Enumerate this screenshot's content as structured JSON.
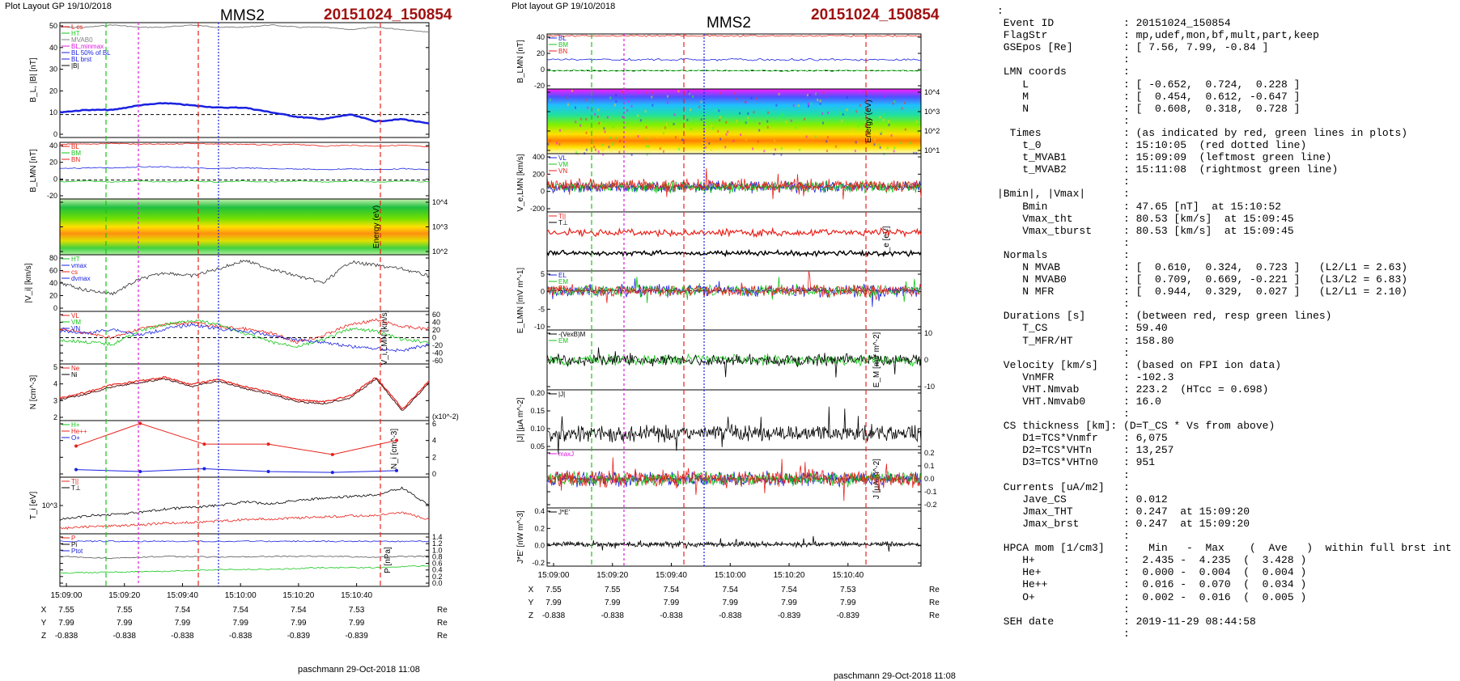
{
  "left_page": {
    "plot_layout": "Plot Layout GP 19/10/2018",
    "spacecraft": "MMS2",
    "event_label": "20151024_150854",
    "footer": "paschmann 29-Oct-2018 11:08",
    "time_ticks": [
      "15:09:00",
      "15:09:20",
      "15:09:40",
      "15:10:00",
      "15:10:20",
      "15:10:40"
    ],
    "pos_rows": [
      {
        "axis": "X",
        "values": [
          "7.55",
          "7.55",
          "7.54",
          "7.54",
          "7.54",
          "7.53"
        ],
        "unit": "Re"
      },
      {
        "axis": "Y",
        "values": [
          "7.99",
          "7.99",
          "7.99",
          "7.99",
          "7.99",
          "7.99"
        ],
        "unit": "Re"
      },
      {
        "axis": "Z",
        "values": [
          "-0.838",
          "-0.838",
          "-0.838",
          "-0.838",
          "-0.839",
          "-0.839"
        ],
        "unit": "Re"
      }
    ]
  },
  "right_page": {
    "plot_layout": "Plot layout GP 19/10/2018",
    "spacecraft": "MMS2",
    "event_label": "20151024_150854",
    "footer": "paschmann 29-Oct-2018 11:08",
    "time_ticks": [
      "15:09:00",
      "15:09:20",
      "15:09:40",
      "15:10:00",
      "15:10:20",
      "15:10:40"
    ],
    "pos_rows": [
      {
        "axis": "X",
        "values": [
          "7.55",
          "7.55",
          "7.54",
          "7.54",
          "7.54",
          "7.53"
        ],
        "unit": "Re"
      },
      {
        "axis": "Y",
        "values": [
          "7.99",
          "7.99",
          "7.99",
          "7.99",
          "7.99",
          "7.99"
        ],
        "unit": "Re"
      },
      {
        "axis": "Z",
        "values": [
          "-0.838",
          "-0.838",
          "-0.838",
          "-0.838",
          "-0.839",
          "-0.839"
        ],
        "unit": "Re"
      }
    ]
  },
  "colors": {
    "red": "#e8221b",
    "green": "#16c61b",
    "blue": "#1a22e0",
    "magenta": "#e018e0",
    "black": "#000000",
    "gray": "#808080",
    "title_red": "#a01010"
  },
  "chart_data": [
    {
      "type": "line",
      "panel": "L1",
      "ylabel": "B_L, |B| [nT]",
      "ylim": [
        0,
        50
      ],
      "yticks": [
        "50",
        "40",
        "30",
        "20",
        "10",
        "0"
      ],
      "legend": [
        "L cs",
        "HT",
        "MVAB0",
        "BL,minmax",
        "BL 50% of BL",
        "BL brst",
        "|B|"
      ],
      "series": [
        {
          "name": "|B|",
          "values": [
            48,
            48,
            49,
            48,
            48,
            49,
            48,
            48,
            49,
            48,
            48,
            47,
            48,
            47,
            46
          ]
        },
        {
          "name": "BL brst",
          "values": [
            11,
            12,
            12,
            14,
            15,
            14,
            13,
            13,
            11,
            9,
            8,
            10,
            7,
            8,
            6
          ]
        }
      ]
    },
    {
      "type": "line",
      "panel": "L2",
      "ylabel": "B_LMN [nT]",
      "ylim": [
        -20,
        40
      ],
      "yticks": [
        "40",
        "20",
        "0",
        "-20"
      ],
      "legend": [
        "BL",
        "BM",
        "BN"
      ],
      "series": [
        {
          "name": "BL",
          "values": [
            38,
            38,
            39,
            38,
            38,
            39,
            38,
            38,
            37,
            38,
            36,
            37,
            36,
            37,
            35
          ]
        },
        {
          "name": "BM",
          "values": [
            12,
            13,
            13,
            14,
            14,
            13,
            12,
            13,
            12,
            12,
            11,
            12,
            11,
            12,
            11
          ]
        },
        {
          "name": "BN",
          "values": [
            -2,
            -1,
            -2,
            -1,
            -2,
            -1,
            -2,
            -1,
            -2,
            -1,
            -2,
            -1,
            -2,
            -1,
            -2
          ]
        }
      ]
    },
    {
      "type": "heatmap",
      "panel": "L3",
      "ylabel": "Energy (eV)",
      "yticks": [
        "10^4",
        "10^3",
        "10^2"
      ]
    },
    {
      "type": "line",
      "panel": "L4",
      "ylabel": "|V_i| [km/s]",
      "ylim": [
        0,
        80
      ],
      "yticks": [
        "80",
        "60",
        "40",
        "20",
        "0"
      ],
      "legend": [
        "HT",
        "vmax",
        "cs",
        "dvmax"
      ],
      "series": [
        {
          "name": "|Vi|",
          "values": [
            40,
            30,
            25,
            45,
            55,
            50,
            60,
            72,
            60,
            50,
            40,
            70,
            65,
            60,
            50
          ]
        }
      ]
    },
    {
      "type": "line",
      "panel": "L5",
      "ylabel": "V_i,LMN [km/s]",
      "ylim": [
        -60,
        60
      ],
      "yticks": [
        "60",
        "40",
        "20",
        "0",
        "-20",
        "-40",
        "-60"
      ],
      "legend": [
        "VL",
        "VM",
        "VN"
      ],
      "series": [
        {
          "name": "VL",
          "values": [
            20,
            10,
            0,
            20,
            30,
            35,
            25,
            20,
            10,
            -10,
            5,
            30,
            40,
            25,
            20
          ]
        },
        {
          "name": "VM",
          "values": [
            -5,
            -10,
            -15,
            15,
            30,
            40,
            30,
            10,
            -10,
            -20,
            -5,
            20,
            15,
            -5,
            -10
          ]
        },
        {
          "name": "VN",
          "values": [
            15,
            10,
            20,
            5,
            20,
            30,
            20,
            15,
            5,
            -5,
            -10,
            -20,
            -25,
            -30,
            -15
          ]
        }
      ]
    },
    {
      "type": "line",
      "panel": "L6",
      "ylabel": "N [cm^-3]",
      "ylim": [
        2,
        5
      ],
      "yticks": [
        "5",
        "4",
        "3",
        "2"
      ],
      "legend": [
        "Ne",
        "Ni"
      ],
      "series": [
        {
          "name": "Ne",
          "values": [
            3.2,
            3.5,
            3.9,
            4.1,
            4.3,
            3.9,
            4.2,
            3.8,
            3.5,
            3.1,
            3.0,
            3.3,
            4.3,
            2.6,
            4.1
          ]
        },
        {
          "name": "Ni",
          "values": [
            3.1,
            3.4,
            3.8,
            4.0,
            4.2,
            3.8,
            4.1,
            3.7,
            3.4,
            3.0,
            2.9,
            3.2,
            4.2,
            2.5,
            4.0
          ]
        }
      ]
    },
    {
      "type": "line",
      "panel": "L7",
      "ylabel": "N_i [cm^-3]",
      "ylim": [
        0,
        6
      ],
      "yticks": [
        "6",
        "4",
        "2",
        "0"
      ],
      "multiplier": "(x10^-2)",
      "legend": [
        "H+",
        "He++",
        "O+"
      ],
      "series": [
        {
          "name": "He++",
          "values": [
            3.3,
            5.7,
            3.5,
            3.5,
            2.4,
            3.9
          ]
        },
        {
          "name": "O+",
          "values": [
            0.8,
            0.6,
            0.9,
            0.6,
            0.5,
            0.7
          ]
        }
      ]
    },
    {
      "type": "line",
      "panel": "L8",
      "ylabel": "T_i [eV]",
      "yticks": [
        "10^3"
      ],
      "legend": [
        "T||",
        "T⊥"
      ],
      "series": [
        {
          "name": "T||",
          "values": [
            600,
            700,
            750,
            800,
            900,
            950,
            1000,
            1100,
            1050,
            1150,
            1200,
            1250,
            1300,
            1500,
            1000
          ]
        },
        {
          "name": "T⊥",
          "values": [
            350,
            400,
            420,
            450,
            500,
            520,
            560,
            600,
            620,
            650,
            680,
            700,
            720,
            800,
            600
          ]
        }
      ]
    },
    {
      "type": "line",
      "panel": "L9",
      "ylabel": "P [nPa]",
      "ylim": [
        0,
        1.4
      ],
      "yticks": [
        "1.4",
        "1.2",
        "1.0",
        "0.8",
        "0.6",
        "0.4",
        "0.2",
        "0.0"
      ],
      "legend": [
        "P",
        "Pi",
        "Ptot"
      ],
      "series": [
        {
          "name": "Ptot",
          "values": [
            1.2,
            1.2,
            1.2,
            1.2,
            1.2,
            1.2,
            1.2,
            1.2
          ]
        },
        {
          "name": "Pi",
          "values": [
            0.8,
            0.75,
            0.8,
            0.78,
            0.8,
            0.8,
            0.78,
            0.8
          ]
        },
        {
          "name": "P",
          "values": [
            0.35,
            0.38,
            0.4,
            0.45,
            0.45,
            0.5,
            0.5,
            0.55
          ]
        }
      ]
    },
    {
      "type": "line",
      "panel": "R1",
      "ylabel": "B_LMN [nT]",
      "ylim": [
        -20,
        40
      ],
      "yticks": [
        "40",
        "20",
        "0",
        "-20"
      ],
      "legend": [
        "BL",
        "BM",
        "BN"
      ]
    },
    {
      "type": "heatmap",
      "panel": "R2",
      "ylabel": "Energy (eV)",
      "yticks": [
        "10^4",
        "10^3",
        "10^2",
        "10^1"
      ]
    },
    {
      "type": "line",
      "panel": "R3",
      "ylabel": "V_e,LMN [km/s]",
      "ylim": [
        -300,
        400
      ],
      "yticks": [
        "400",
        "200",
        "0",
        "-200"
      ],
      "legend": [
        "VL",
        "VM",
        "VN"
      ]
    },
    {
      "type": "line",
      "panel": "R4",
      "ylabel": "T_e [eV]",
      "legend": [
        "T||",
        "T⊥"
      ]
    },
    {
      "type": "line",
      "panel": "R5",
      "ylabel": "E_LMN [mV m^-1]",
      "ylim": [
        -10,
        5
      ],
      "yticks": [
        "5",
        "0",
        "-5",
        "-10"
      ],
      "legend": [
        "EL",
        "EM",
        "EN"
      ]
    },
    {
      "type": "line",
      "panel": "R6",
      "ylabel": "E_M [mV m^-2]",
      "ylim": [
        -15,
        15
      ],
      "yticks": [
        "10",
        "0",
        "-10"
      ],
      "legend": [
        "-(VexB)M",
        "EM"
      ]
    },
    {
      "type": "line",
      "panel": "R7",
      "ylabel": "|J| [µA m^-2]",
      "ylim": [
        0,
        0.22
      ],
      "yticks": [
        "0.20",
        "0.15",
        "0.10",
        "0.05"
      ],
      "legend": [
        "|J|"
      ]
    },
    {
      "type": "line",
      "panel": "R8",
      "ylabel": "J [µA m^-2]",
      "ylim": [
        -0.2,
        0.2
      ],
      "yticks": [
        "0.2",
        "0.1",
        "0.0",
        "-0.1",
        "-0.2"
      ],
      "legend": [
        "maxJ"
      ]
    },
    {
      "type": "line",
      "panel": "R9",
      "ylabel": "J*E' [nW m^-3]",
      "ylim": [
        -0.3,
        0.5
      ],
      "yticks": [
        "0.4",
        "0.2",
        "0.0",
        "-0.2"
      ],
      "legend": [
        "J*E'"
      ]
    }
  ],
  "info_lines": [
    ":",
    " Event ID           : 20151024_150854",
    " FlagStr            : mp,udef,mon,bf,mult,part,keep",
    " GSEpos [Re]        : [ 7.56, 7.99, -0.84 ]",
    "                    :",
    " LMN coords         :",
    "    L               : [ -0.652,  0.724,  0.228 ]",
    "    M               : [  0.454,  0.612, -0.647 ]",
    "    N               : [  0.608,  0.318,  0.728 ]",
    "                    :",
    "  Times             : (as indicated by red, green lines in plots)",
    "    t_0             : 15:10:05  (red dotted line)",
    "    t_MVAB1         : 15:09:09  (leftmost green line)",
    "    t_MVAB2         : 15:11:08  (rightmost green line)",
    "                    :",
    "|Bmin|, |Vmax|      :",
    "    Bmin            : 47.65 [nT]  at 15:10:52",
    "    Vmax_tht        : 80.53 [km/s]  at 15:09:45",
    "    Vmax_tburst     : 80.53 [km/s]  at 15:09:45",
    "                    :",
    " Normals            :",
    "    N MVAB          : [  0.610,  0.324,  0.723 ]   (L2/L1 = 2.63)",
    "    N MVAB0         : [  0.709,  0.669, -0.221 ]   (L3/L2 = 6.83)",
    "    N MFR           : [  0.944,  0.329,  0.027 ]   (L2/L1 = 2.10)",
    "                    :",
    " Durations [s]      : (between red, resp green lines)",
    "    T_CS            : 59.40",
    "    T_MFR/HT        : 158.80",
    "                    :",
    " Velocity [km/s]    : (based on FPI ion data)",
    "    VnMFR           : -102.3",
    "    VHT.Nmvab       : 223.2  (HTcc = 0.698)",
    "    VHT.Nmvab0      : 16.0",
    "                    :",
    " CS thickness [km]: (D=T_CS * Vs from above)",
    "    D1=TCS*Vnmfr    : 6,075",
    "    D2=TCS*VHTn     : 13,257",
    "    D3=TCS*VHTn0    : 951",
    "                    :",
    " Currents [uA/m2]   :",
    "    Jave_CS         : 0.012",
    "    Jmax_THT        : 0.247  at 15:09:20",
    "    Jmax_brst       : 0.247  at 15:09:20",
    "                    :",
    " HPCA mom [1/cm3]   :   Min   -  Max    (  Ave   )  within full brst int",
    "    H+              :  2.435 -  4.235  (  3.428 )",
    "    He+             :  0.000 -  0.004  (  0.004 )",
    "    He++            :  0.016 -  0.070  (  0.034 )",
    "    O+              :  0.002 -  0.016  (  0.005 )",
    "                    :",
    " SEH date           : 2019-11-29 08:44:58",
    "                    :"
  ]
}
